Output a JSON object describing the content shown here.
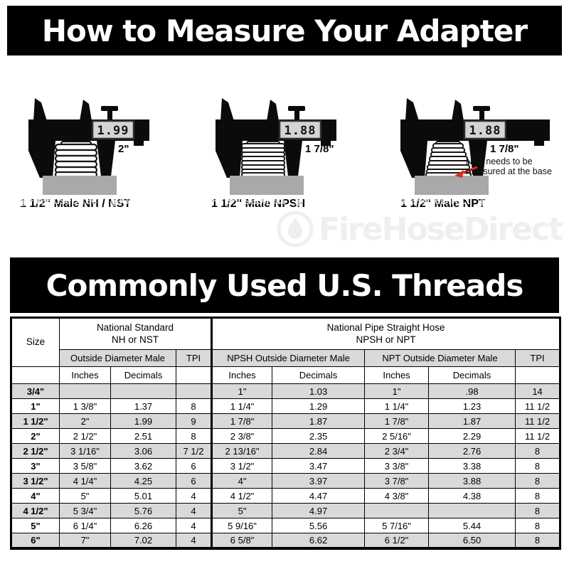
{
  "header_banner": {
    "title": "How to Measure Your Adapter",
    "bg": "#000000",
    "fg": "#ffffff"
  },
  "icons": {
    "flame_ring": "◉"
  },
  "watermark": {
    "brand": "FireHoseDirect"
  },
  "calipers": [
    {
      "display_value": "1.99",
      "size_label": "2\"",
      "caption": "1 1/2\" Male NH / NST"
    },
    {
      "display_value": "1.88",
      "size_label": "1 7/8\"",
      "caption": "1 1/2\" Male NPSH"
    },
    {
      "display_value": "1.88",
      "size_label": "1 7/8\"",
      "caption": "1 1/2\" Male NPT",
      "annotation": "NPT needs to be measured at the base",
      "arrow_color": "#e02a1e"
    }
  ],
  "threads_banner": {
    "title": "Commonly Used U.S. Threads"
  },
  "table": {
    "header": {
      "size": "Size",
      "group_nh_line1": "National Standard",
      "group_nh_line2": "NH or NST",
      "group_np_line1": "National Pipe Straight Hose",
      "group_np_line2": "NPSH or NPT",
      "od_male": "Outside Diameter Male",
      "tpi": "TPI",
      "npsh_od_male": "NPSH Outside Diameter Male",
      "npt_od_male": "NPT Outside Diameter Male",
      "inches": "Inches",
      "decimals": "Decimals"
    },
    "rows": [
      [
        "3/4\"",
        "",
        "",
        "",
        "1\"",
        "1.03",
        "1\"",
        ".98",
        "14"
      ],
      [
        "1\"",
        "1 3/8\"",
        "1.37",
        "8",
        "1 1/4\"",
        "1.29",
        "1 1/4\"",
        "1.23",
        "11 1/2"
      ],
      [
        "1 1/2\"",
        "2\"",
        "1.99",
        "9",
        "1 7/8\"",
        "1.87",
        "1 7/8\"",
        "1.87",
        "11 1/2"
      ],
      [
        "2\"",
        "2 1/2\"",
        "2.51",
        "8",
        "2 3/8\"",
        "2.35",
        "2 5/16\"",
        "2.29",
        "11 1/2"
      ],
      [
        "2 1/2\"",
        "3 1/16\"",
        "3.06",
        "7 1/2",
        "2 13/16\"",
        "2.84",
        "2 3/4\"",
        "2.76",
        "8"
      ],
      [
        "3\"",
        "3 5/8\"",
        "3.62",
        "6",
        "3 1/2\"",
        "3.47",
        "3 3/8\"",
        "3.38",
        "8"
      ],
      [
        "3 1/2\"",
        "4 1/4\"",
        "4.25",
        "6",
        "4\"",
        "3.97",
        "3 7/8\"",
        "3.88",
        "8"
      ],
      [
        "4\"",
        "5\"",
        "5.01",
        "4",
        "4 1/2\"",
        "4.47",
        "4 3/8\"",
        "4.38",
        "8"
      ],
      [
        "4 1/2\"",
        "5 3/4\"",
        "5.76",
        "4",
        "5\"",
        "4.97",
        "",
        "",
        "8"
      ],
      [
        "5\"",
        "6 1/4\"",
        "6.26",
        "4",
        "5 9/16\"",
        "5.56",
        "5 7/16\"",
        "5.44",
        "8"
      ],
      [
        "6\"",
        "7\"",
        "7.02",
        "4",
        "6 5/8\"",
        "6.62",
        "6 1/2\"",
        "6.50",
        "8"
      ]
    ],
    "colors": {
      "row_alt": "#d9d9d9",
      "border": "#000000"
    }
  }
}
